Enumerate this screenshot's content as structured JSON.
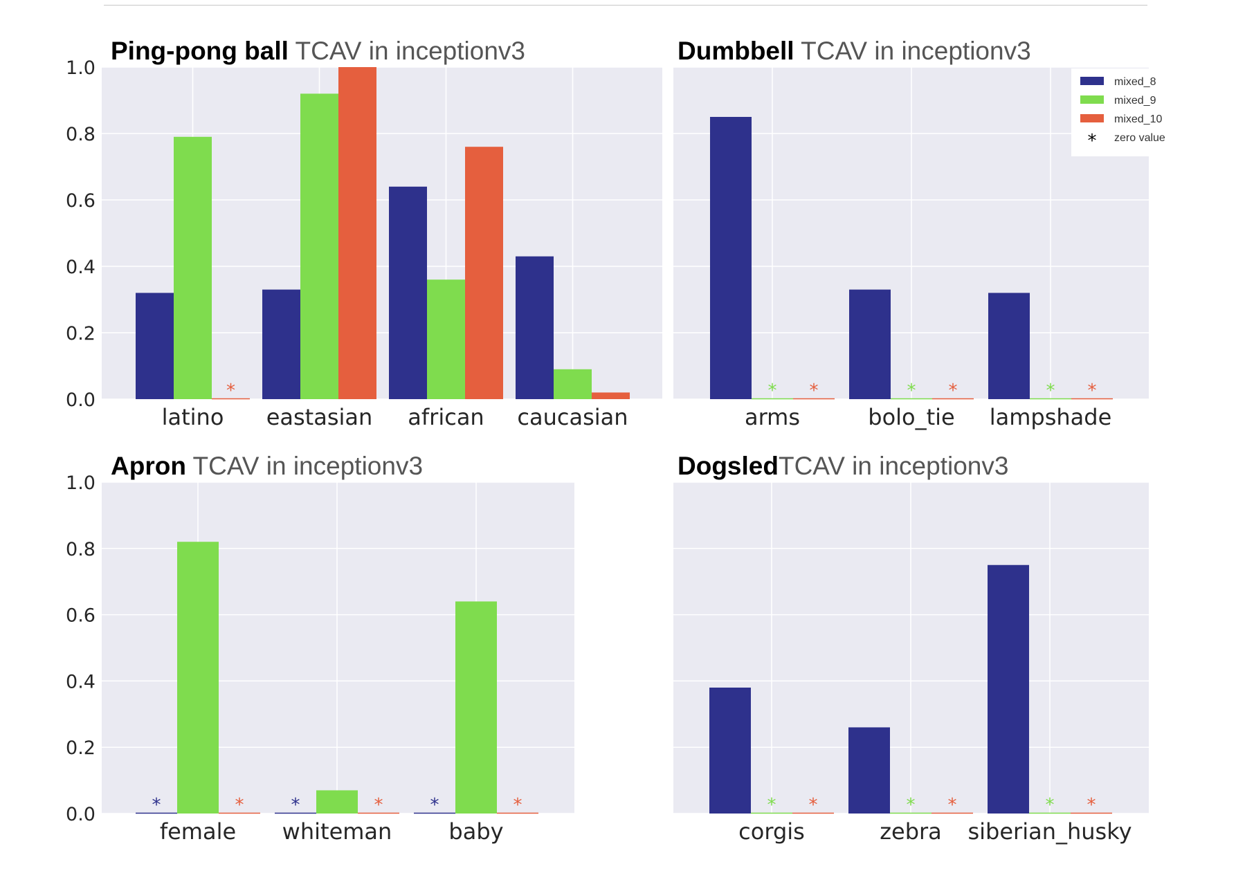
{
  "colors": {
    "plot_bg": "#eaeaf2",
    "grid": "#ffffff",
    "text": "#262626",
    "title_gray": "#555555"
  },
  "chart_data": [
    {
      "type": "bar",
      "title_bold": "Ping-pong ball",
      "title_rest": " TCAV in inceptionv3",
      "xlabel": "",
      "ylabel": "",
      "ylim": [
        0,
        1.0
      ],
      "yticks": [
        "0.0",
        "0.2",
        "0.4",
        "0.6",
        "0.8",
        "1.0"
      ],
      "grid": true,
      "categories": [
        "latino",
        "eastasian",
        "african",
        "caucasian"
      ],
      "series": [
        {
          "name": "mixed_8",
          "color": "#2e318c",
          "values": [
            0.32,
            0.33,
            0.64,
            0.43
          ]
        },
        {
          "name": "mixed_9",
          "color": "#7fdc4e",
          "values": [
            0.79,
            0.92,
            0.36,
            0.09
          ]
        },
        {
          "name": "mixed_10",
          "color": "#e55f3e",
          "values": [
            0.0,
            1.0,
            0.76,
            0.02
          ]
        }
      ]
    },
    {
      "type": "bar",
      "title_bold": "Dumbbell",
      "title_rest": " TCAV in inceptionv3",
      "xlabel": "",
      "ylabel": "",
      "ylim": [
        0,
        1.0
      ],
      "yticks": [],
      "grid": true,
      "categories": [
        "arms",
        "bolo_tie",
        "lampshade"
      ],
      "series": [
        {
          "name": "mixed_8",
          "color": "#2e318c",
          "values": [
            0.85,
            0.33,
            0.32
          ]
        },
        {
          "name": "mixed_9",
          "color": "#7fdc4e",
          "values": [
            0.0,
            0.0,
            0.0
          ]
        },
        {
          "name": "mixed_10",
          "color": "#e55f3e",
          "values": [
            0.0,
            0.0,
            0.0
          ]
        }
      ],
      "legend": {
        "placement": "top-right",
        "entries": [
          "mixed_8",
          "mixed_9",
          "mixed_10"
        ],
        "zero_label": "zero value"
      }
    },
    {
      "type": "bar",
      "title_bold": "Apron",
      "title_rest": " TCAV in inceptionv3",
      "xlabel": "",
      "ylabel": "",
      "ylim": [
        0,
        1.0
      ],
      "yticks": [
        "0.0",
        "0.2",
        "0.4",
        "0.6",
        "0.8",
        "1.0"
      ],
      "grid": true,
      "categories": [
        "female",
        "whiteman",
        "baby"
      ],
      "series": [
        {
          "name": "mixed_8",
          "color": "#2e318c",
          "values": [
            0.0,
            0.0,
            0.0
          ]
        },
        {
          "name": "mixed_9",
          "color": "#7fdc4e",
          "values": [
            0.82,
            0.07,
            0.64
          ]
        },
        {
          "name": "mixed_10",
          "color": "#e55f3e",
          "values": [
            0.0,
            0.0,
            0.0
          ]
        }
      ]
    },
    {
      "type": "bar",
      "title_bold": "Dogsled",
      "title_rest": "TCAV in inceptionv3",
      "xlabel": "",
      "ylabel": "",
      "ylim": [
        0,
        1.0
      ],
      "yticks": [],
      "grid": true,
      "categories": [
        "corgis",
        "zebra",
        "siberian_husky"
      ],
      "series": [
        {
          "name": "mixed_8",
          "color": "#2e318c",
          "values": [
            0.38,
            0.26,
            0.75
          ]
        },
        {
          "name": "mixed_9",
          "color": "#7fdc4e",
          "values": [
            0.0,
            0.0,
            0.0
          ]
        },
        {
          "name": "mixed_10",
          "color": "#e55f3e",
          "values": [
            0.0,
            0.0,
            0.0
          ]
        }
      ]
    }
  ]
}
